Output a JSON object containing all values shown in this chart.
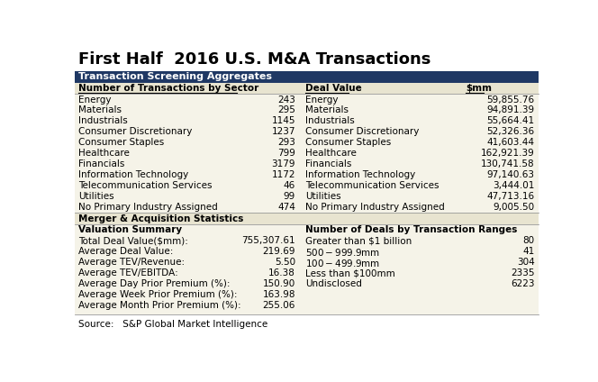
{
  "title": "First Half  2016 U.S. M&A Transactions",
  "header_bar_text": "Transaction Screening Aggregates",
  "header_bar_color": "#1f3864",
  "header_bar_text_color": "#ffffff",
  "subheader_bg": "#e8e4d0",
  "table_bg": "#f5f3e8",
  "source": "Source:   S&P Global Market Intelligence",
  "col1_header": "Number of Transactions by Sector",
  "col3_header": "Deal Value",
  "col4_header": "$mm",
  "sectors_left": [
    "Energy",
    "Materials",
    "Industrials",
    "Consumer Discretionary",
    "Consumer Staples",
    "Healthcare",
    "Financials",
    "Information Technology",
    "Telecommunication Services",
    "Utilities",
    "No Primary Industry Assigned"
  ],
  "sectors_left_count": [
    "243",
    "295",
    "1145",
    "1237",
    "293",
    "799",
    "3179",
    "1172",
    "46",
    "99",
    "474"
  ],
  "sectors_right": [
    "Energy",
    "Materials",
    "Industrials",
    "Consumer Discretionary",
    "Consumer Staples",
    "Healthcare",
    "Financials",
    "Information Technology",
    "Telecommunication Services",
    "Utilities",
    "No Primary Industry Assigned"
  ],
  "sectors_right_value": [
    "59,855.76",
    "94,891.39",
    "55,664.41",
    "52,326.36",
    "41,603.44",
    "162,921.39",
    "130,741.58",
    "97,140.63",
    "3,444.01",
    "47,713.16",
    "9,005.50"
  ],
  "ma_header": "Merger & Acquisition Statistics",
  "val_summary_header": "Valuation Summary",
  "val_labels": [
    "Total Deal Value($mm):",
    "Average Deal Value:",
    "Average TEV/Revenue:",
    "Average TEV/EBITDA:",
    "Average Day Prior Premium (%):",
    "Average Week Prior Premium (%):",
    "Average Month Prior Premium (%):"
  ],
  "val_values": [
    "755,307.61",
    "219.69",
    "5.50",
    "16.38",
    "150.90",
    "163.98",
    "255.06"
  ],
  "deals_header": "Number of Deals by Transaction Ranges",
  "deals_labels": [
    "Greater than $1 billion",
    "$500 - $999.9mm",
    "$100 - $499.9mm",
    "Less than $100mm",
    "Undisclosed"
  ],
  "deals_values": [
    "80",
    "41",
    "304",
    "2335",
    "6223"
  ],
  "bg_color": "#ffffff",
  "title_fontsize": 13,
  "body_fontsize": 7.5,
  "header_fontsize": 8.0
}
